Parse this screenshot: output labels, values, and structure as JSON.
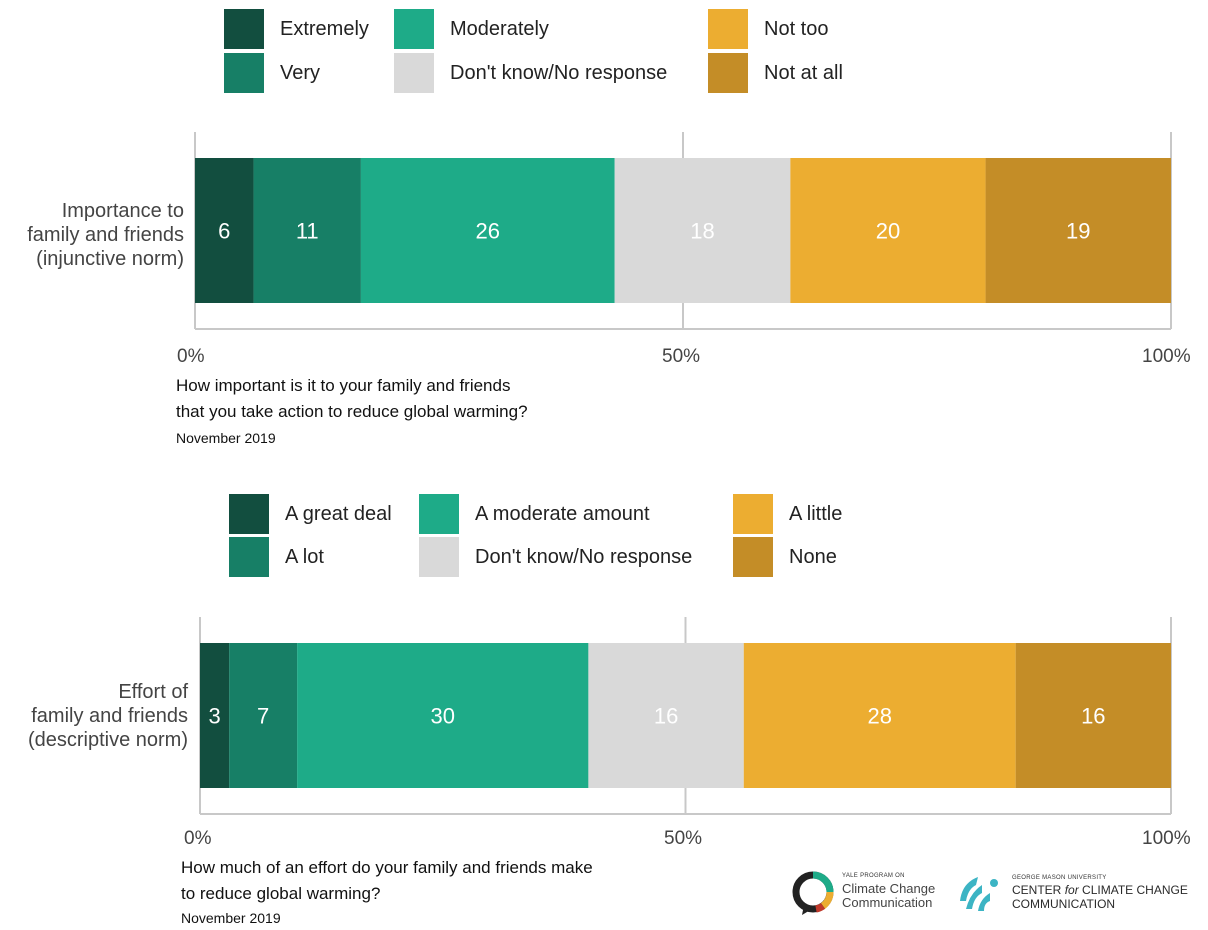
{
  "chart_data": [
    {
      "type": "bar",
      "orientation": "horizontal",
      "stacked": true,
      "categories": [
        "Importance to family and friends (injunctive norm)"
      ],
      "category_lines": [
        "Importance to",
        "family and friends",
        "(injunctive norm)"
      ],
      "series": [
        {
          "name": "Extremely",
          "values": [
            6
          ],
          "color": "#124e3f",
          "text_color": "#ffffff"
        },
        {
          "name": "Very",
          "values": [
            11
          ],
          "color": "#177f66",
          "text_color": "#ffffff"
        },
        {
          "name": "Moderately",
          "values": [
            26
          ],
          "color": "#1eab88",
          "text_color": "#ffffff"
        },
        {
          "name": "Don't know/No response",
          "values": [
            18
          ],
          "color": "#d9d9d9",
          "text_color": "#ffffff"
        },
        {
          "name": "Not too",
          "values": [
            20
          ],
          "color": "#ecad31",
          "text_color": "#ffffff"
        },
        {
          "name": "Not at all",
          "values": [
            19
          ],
          "color": "#c48d27",
          "text_color": "#ffffff"
        }
      ],
      "legend_order": [
        "Extremely",
        "Moderately",
        "Not too",
        "Very",
        "Don't know/No response",
        "Not at all"
      ],
      "xlim": [
        0,
        100
      ],
      "xticks": [
        "0%",
        "50%",
        "100%"
      ],
      "grid": true,
      "question_lines": [
        "How important is it to your family and friends",
        "that you take action to reduce global warming?"
      ],
      "date": "November 2019"
    },
    {
      "type": "bar",
      "orientation": "horizontal",
      "stacked": true,
      "categories": [
        "Effort of family and friends (descriptive norm)"
      ],
      "category_lines": [
        "Effort of",
        "family and friends",
        "(descriptive norm)"
      ],
      "series": [
        {
          "name": "A great deal",
          "values": [
            3
          ],
          "color": "#124e3f",
          "text_color": "#ffffff"
        },
        {
          "name": "A lot",
          "values": [
            7
          ],
          "color": "#177f66",
          "text_color": "#ffffff"
        },
        {
          "name": "A moderate amount",
          "values": [
            30
          ],
          "color": "#1eab88",
          "text_color": "#ffffff"
        },
        {
          "name": "Don't know/No response",
          "values": [
            16
          ],
          "color": "#d9d9d9",
          "text_color": "#ffffff"
        },
        {
          "name": "A little",
          "values": [
            28
          ],
          "color": "#ecad31",
          "text_color": "#ffffff"
        },
        {
          "name": "None",
          "values": [
            16
          ],
          "color": "#c48d27",
          "text_color": "#ffffff"
        }
      ],
      "legend_order": [
        "A great deal",
        "A moderate amount",
        "A little",
        "A lot",
        "Don't know/No response",
        "None"
      ],
      "xlim": [
        0,
        100
      ],
      "xticks": [
        "0%",
        "50%",
        "100%"
      ],
      "grid": true,
      "question_lines": [
        "How much of an effort do your family and friends make",
        "to reduce global warming?"
      ],
      "date": "November 2019"
    }
  ],
  "logos": {
    "yale": {
      "line1": "YALE PROGRAM ON",
      "line2": "Climate Change",
      "line3": "Communication"
    },
    "gmu": {
      "line1": "GEORGE MASON UNIVERSITY",
      "line2a": "CENTER",
      "line2b": "for",
      "line2c": "CLIMATE CHANGE",
      "line3": "COMMUNICATION"
    }
  }
}
